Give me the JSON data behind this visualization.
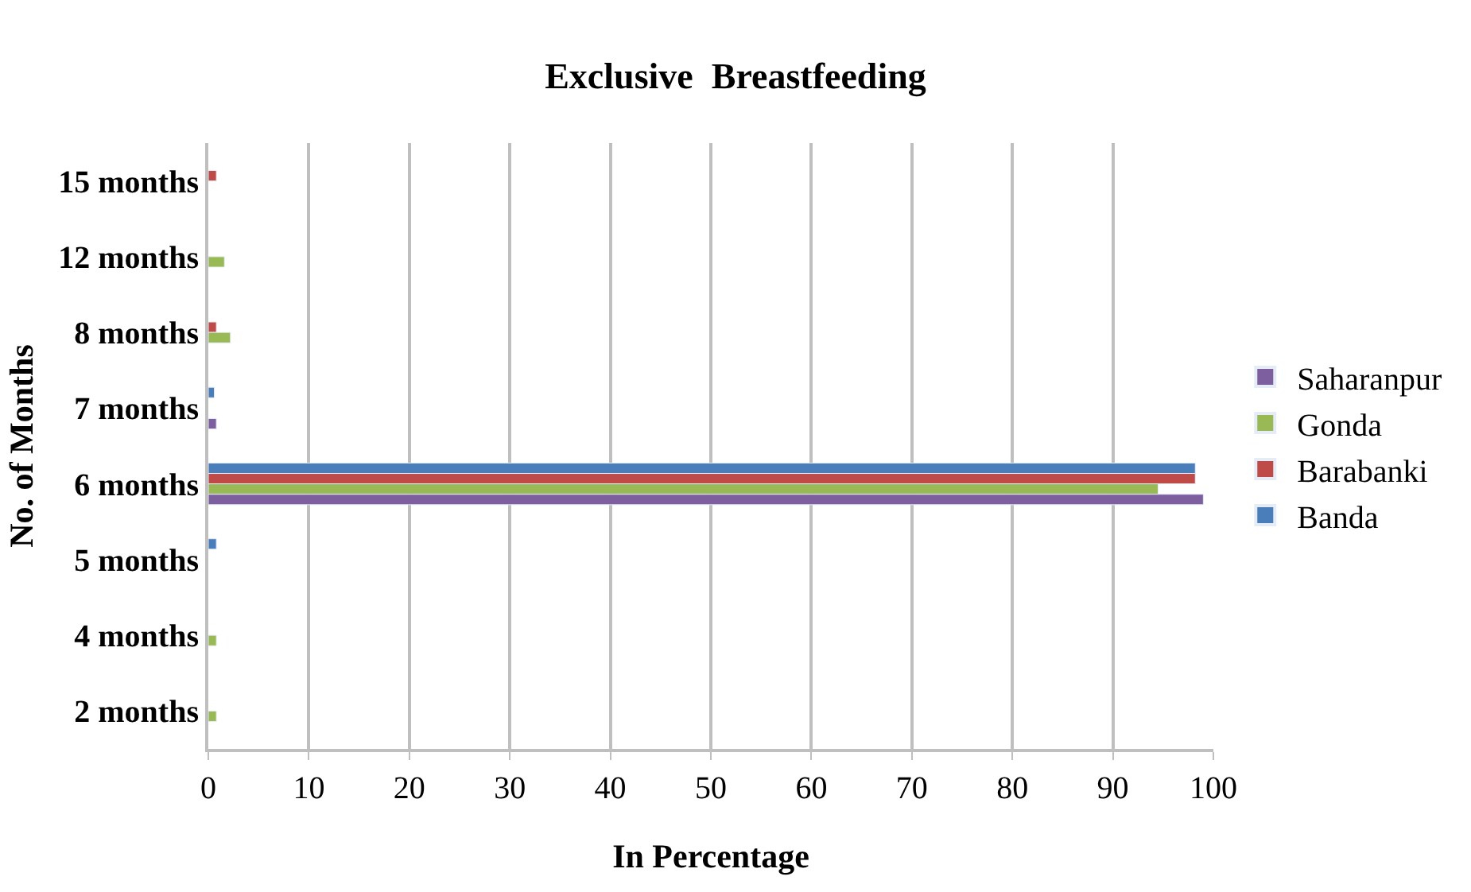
{
  "chart_data": {
    "type": "bar",
    "orientation": "horizontal",
    "title": "Exclusive  Breastfeeding",
    "xlabel": "In Percentage",
    "ylabel": "No. of Months",
    "categories": [
      "15 months",
      "12 months",
      "8 months",
      "7 months",
      "6 months",
      "5 months",
      "4 months",
      "2 months"
    ],
    "series": [
      {
        "name": "Banda",
        "color": "#4a7ebb",
        "values": [
          null,
          null,
          null,
          0.6,
          98.2,
          0.8,
          null,
          null
        ]
      },
      {
        "name": "Barabanki",
        "color": "#be4b48",
        "values": [
          0.8,
          null,
          0.8,
          null,
          98.2,
          null,
          null,
          null
        ]
      },
      {
        "name": "Gonda",
        "color": "#98b954",
        "values": [
          null,
          1.6,
          2.2,
          null,
          94.5,
          null,
          0.8,
          0.8
        ]
      },
      {
        "name": "Saharanpur",
        "color": "#7d5fa0",
        "values": [
          null,
          null,
          null,
          0.8,
          99,
          null,
          null,
          null
        ]
      }
    ],
    "xlim": [
      0,
      100
    ],
    "xticks": [
      0,
      10,
      20,
      30,
      40,
      50,
      60,
      70,
      80,
      90,
      100
    ],
    "grid": "x",
    "legend": "right"
  }
}
